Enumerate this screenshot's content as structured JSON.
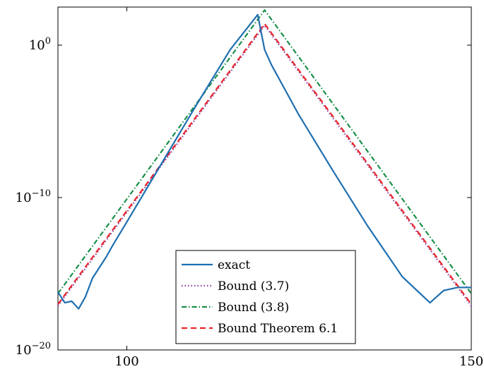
{
  "chart_data": {
    "type": "line",
    "title": "",
    "xlabel": "",
    "ylabel": "",
    "xlim": [
      90,
      150
    ],
    "ylim_log10": [
      -20,
      2.5
    ],
    "yscale": "log",
    "grid": false,
    "legend_position": "bottom-center",
    "x_ticks": [
      {
        "value": 100,
        "label": "100"
      },
      {
        "value": 150,
        "label": "150"
      }
    ],
    "y_ticks": [
      {
        "log10": 0,
        "base": "10",
        "exp": "0"
      },
      {
        "log10": -10,
        "base": "10",
        "exp": "−10"
      },
      {
        "log10": -20,
        "base": "10",
        "exp": "−20"
      }
    ],
    "series": [
      {
        "name": "exact",
        "color": "#1f6fb0",
        "style": "solid",
        "x": [
          90,
          91,
          92,
          93,
          94,
          95,
          96,
          97,
          98,
          100,
          105,
          110,
          115,
          119,
          120,
          121,
          125,
          130,
          135,
          140,
          144,
          145,
          146,
          147,
          148,
          149,
          150
        ],
        "log10y": [
          -16.2,
          -16.9,
          -16.8,
          -17.3,
          -16.5,
          -15.3,
          -14.6,
          -13.9,
          -13.1,
          -11.6,
          -7.8,
          -4.0,
          -0.3,
          2.0,
          -0.3,
          -1.3,
          -4.6,
          -8.3,
          -11.9,
          -15.2,
          -16.9,
          -16.5,
          -16.1,
          -16.0,
          -15.9,
          -15.9,
          -15.9
        ]
      },
      {
        "name": "Bound (3.7)",
        "color": "#8a3fa0",
        "style": "dotted",
        "x": [
          90,
          120,
          150
        ],
        "log10y": [
          -17.1,
          1.3,
          -17.1
        ]
      },
      {
        "name": "Bound (3.8)",
        "color": "#1a8f4a",
        "style": "dashdot",
        "x": [
          90,
          120,
          150
        ],
        "log10y": [
          -16.3,
          2.3,
          -16.3
        ]
      },
      {
        "name": "Bound Theorem 6.1",
        "color": "#e8242b",
        "style": "dashed",
        "x": [
          90,
          120,
          150
        ],
        "log10y": [
          -17.0,
          1.4,
          -17.0
        ]
      }
    ]
  }
}
